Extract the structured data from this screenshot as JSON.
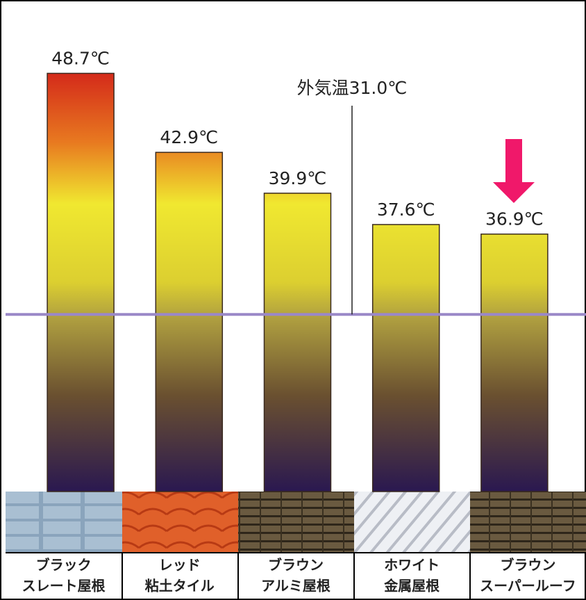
{
  "chart_data": {
    "type": "bar",
    "categories": [
      [
        "ブラック",
        "スレート屋根"
      ],
      [
        "レッド",
        "粘土タイル"
      ],
      [
        "ブラウン",
        "アルミ屋根"
      ],
      [
        "ホワイト",
        "金属屋根"
      ],
      [
        "ブラウン",
        "スーパールーフ"
      ]
    ],
    "values": [
      48.7,
      42.9,
      39.9,
      37.6,
      36.9
    ],
    "value_labels": [
      "48.7℃",
      "42.9℃",
      "39.9℃",
      "37.6℃",
      "36.9℃"
    ],
    "ylim": [
      18,
      50
    ],
    "reference": {
      "label": "外気温31.0℃",
      "value": 31.0,
      "color": "#9a88c8"
    },
    "highlight_color": "#f0186a"
  }
}
